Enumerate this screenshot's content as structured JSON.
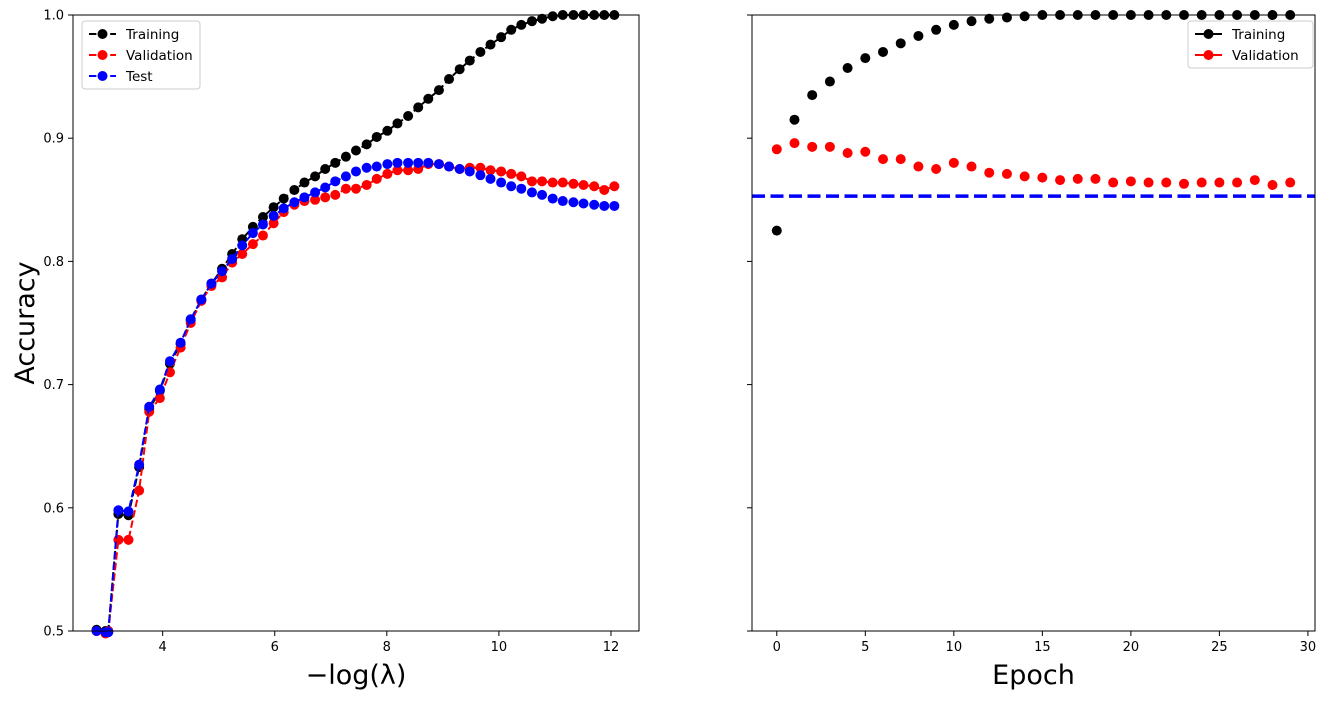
{
  "chart_data": [
    {
      "type": "line",
      "ylabel": "Accuracy",
      "xlabel": "−log(λ)",
      "xlim": [
        2.4,
        12.5
      ],
      "ylim": [
        0.5,
        1.0
      ],
      "xticks": [
        "4",
        "6",
        "8",
        "10",
        "12"
      ],
      "yticks": [
        "0.5",
        "0.6",
        "0.7",
        "0.8",
        "0.9",
        "1.0"
      ],
      "legend": "upper-left",
      "x": [
        2.82,
        2.98,
        3.03,
        3.21,
        3.39,
        3.58,
        3.76,
        3.95,
        4.13,
        4.32,
        4.5,
        4.69,
        4.87,
        5.06,
        5.24,
        5.42,
        5.61,
        5.79,
        5.98,
        6.16,
        6.35,
        6.53,
        6.72,
        6.9,
        7.08,
        7.27,
        7.45,
        7.64,
        7.82,
        8.01,
        8.19,
        8.38,
        8.56,
        8.74,
        8.93,
        9.11,
        9.3,
        9.48,
        9.67,
        9.85,
        10.04,
        10.22,
        10.4,
        10.59,
        10.77,
        10.96,
        11.14,
        11.33,
        11.51,
        11.7,
        11.88,
        12.06
      ],
      "series": [
        {
          "name": "Training",
          "color": "#000000",
          "style": "dashed",
          "values": [
            0.501,
            0.5,
            0.5,
            0.595,
            0.594,
            0.633,
            0.68,
            0.695,
            0.717,
            0.733,
            0.752,
            0.769,
            0.782,
            0.794,
            0.806,
            0.818,
            0.828,
            0.836,
            0.844,
            0.851,
            0.858,
            0.864,
            0.869,
            0.875,
            0.88,
            0.885,
            0.89,
            0.895,
            0.901,
            0.906,
            0.912,
            0.918,
            0.925,
            0.932,
            0.939,
            0.948,
            0.956,
            0.963,
            0.97,
            0.976,
            0.982,
            0.988,
            0.992,
            0.995,
            0.997,
            0.999,
            1.0,
            1.0,
            1.0,
            1.0,
            1.0,
            1.0
          ]
        },
        {
          "name": "Validation",
          "color": "#ff0000",
          "style": "dashed",
          "values": [
            0.5,
            0.498,
            0.5,
            0.574,
            0.574,
            0.614,
            0.678,
            0.689,
            0.71,
            0.73,
            0.75,
            0.768,
            0.78,
            0.787,
            0.799,
            0.806,
            0.814,
            0.821,
            0.831,
            0.84,
            0.846,
            0.849,
            0.85,
            0.852,
            0.854,
            0.859,
            0.859,
            0.862,
            0.867,
            0.871,
            0.874,
            0.874,
            0.875,
            0.879,
            0.879,
            0.877,
            0.875,
            0.876,
            0.876,
            0.874,
            0.873,
            0.871,
            0.869,
            0.865,
            0.865,
            0.864,
            0.864,
            0.863,
            0.862,
            0.861,
            0.858,
            0.861
          ]
        },
        {
          "name": "Test",
          "color": "#0000ff",
          "style": "dashed",
          "values": [
            0.5,
            0.499,
            0.499,
            0.598,
            0.597,
            0.635,
            0.682,
            0.696,
            0.719,
            0.734,
            0.753,
            0.769,
            0.782,
            0.792,
            0.802,
            0.813,
            0.823,
            0.83,
            0.837,
            0.843,
            0.848,
            0.852,
            0.856,
            0.86,
            0.865,
            0.869,
            0.873,
            0.876,
            0.877,
            0.879,
            0.88,
            0.88,
            0.88,
            0.88,
            0.879,
            0.877,
            0.875,
            0.873,
            0.87,
            0.867,
            0.864,
            0.861,
            0.859,
            0.856,
            0.854,
            0.851,
            0.849,
            0.848,
            0.847,
            0.846,
            0.845,
            0.845
          ]
        }
      ]
    },
    {
      "type": "scatter",
      "xlabel": "Epoch",
      "xlim": [
        -1.4,
        30.4
      ],
      "ylim": [
        0.5,
        1.0
      ],
      "xticks": [
        "0",
        "5",
        "10",
        "15",
        "20",
        "25",
        "30"
      ],
      "legend": "upper-right",
      "reference_line": {
        "y": 0.853,
        "color": "#0000ff",
        "style": "dashed"
      },
      "x": [
        0,
        1,
        2,
        3,
        4,
        5,
        6,
        7,
        8,
        9,
        10,
        11,
        12,
        13,
        14,
        15,
        16,
        17,
        18,
        19,
        20,
        21,
        22,
        23,
        24,
        25,
        26,
        27,
        28,
        29
      ],
      "series": [
        {
          "name": "Training",
          "color": "#000000",
          "values": [
            0.825,
            0.915,
            0.935,
            0.946,
            0.957,
            0.965,
            0.97,
            0.977,
            0.983,
            0.988,
            0.992,
            0.995,
            0.997,
            0.998,
            0.999,
            1.0,
            1.0,
            1.0,
            1.0,
            1.0,
            1.0,
            1.0,
            1.0,
            1.0,
            1.0,
            1.0,
            1.0,
            1.0,
            1.0,
            1.0
          ]
        },
        {
          "name": "Validation",
          "color": "#ff0000",
          "values": [
            0.891,
            0.896,
            0.893,
            0.893,
            0.888,
            0.889,
            0.883,
            0.883,
            0.877,
            0.875,
            0.88,
            0.877,
            0.872,
            0.871,
            0.869,
            0.868,
            0.866,
            0.867,
            0.867,
            0.864,
            0.865,
            0.864,
            0.864,
            0.863,
            0.864,
            0.864,
            0.864,
            0.866,
            0.862,
            0.864
          ]
        }
      ]
    }
  ]
}
